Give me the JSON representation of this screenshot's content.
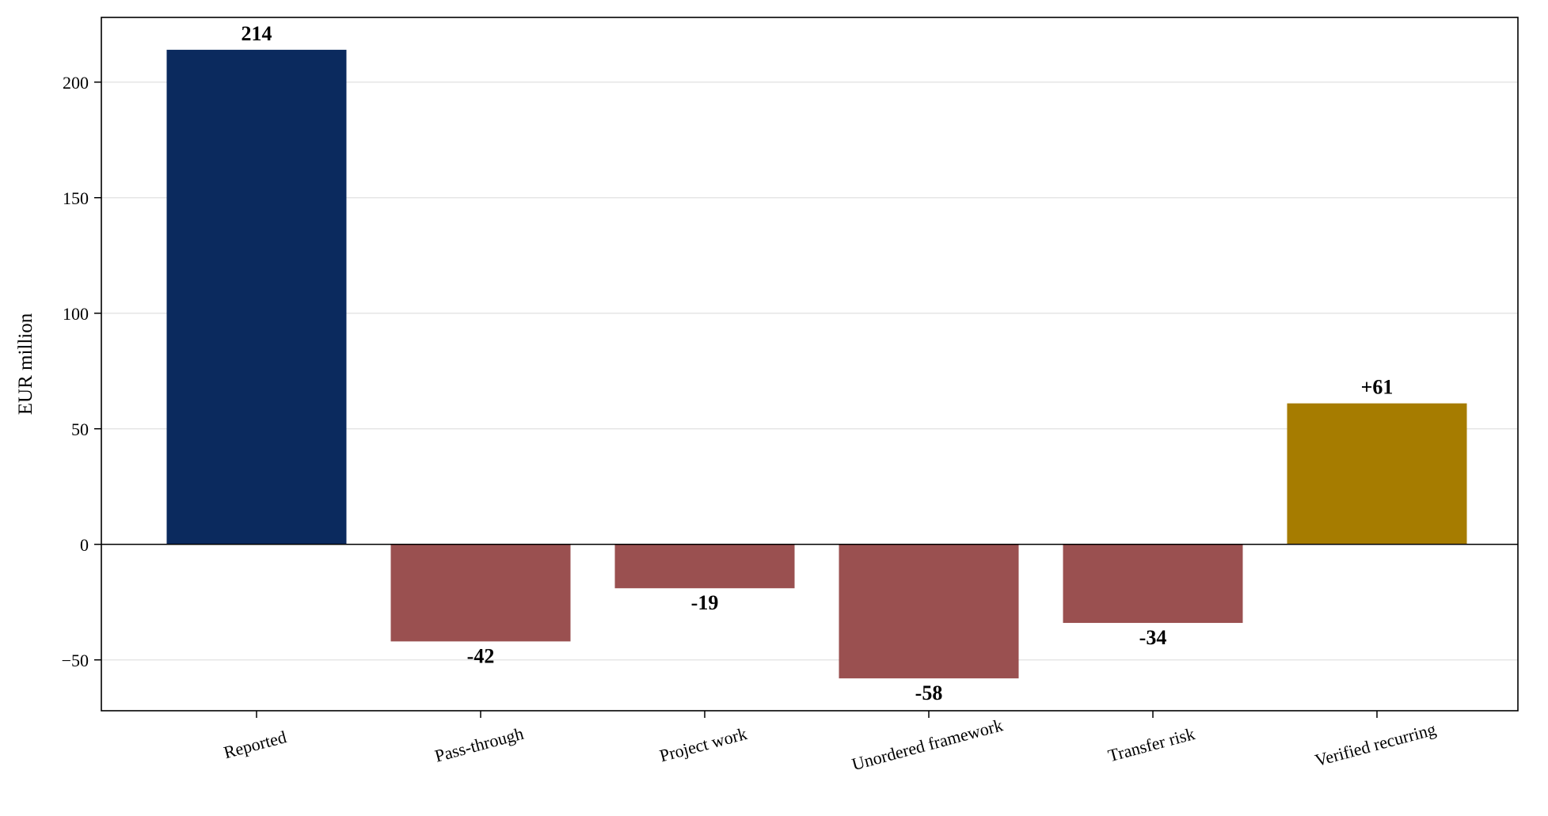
{
  "chart_data": {
    "type": "bar",
    "title": "",
    "xlabel": "",
    "ylabel": "EUR million",
    "categories": [
      "Reported",
      "Pass-through",
      "Project work",
      "Unordered framework",
      "Transfer risk",
      "Verified recurring"
    ],
    "values": [
      214,
      -42,
      -19,
      -58,
      -34,
      61
    ],
    "data_labels": [
      "214",
      "-42",
      "-19",
      "-58",
      "-34",
      "+61"
    ],
    "bar_colors": [
      "#0b2a5e",
      "#9a5050",
      "#9a5050",
      "#9a5050",
      "#9a5050",
      "#a67c00"
    ],
    "ylim": [
      -72,
      228
    ],
    "yticks": [
      -50,
      0,
      50,
      100,
      150,
      200
    ],
    "ytick_labels": [
      "−50",
      "0",
      "50",
      "100",
      "150",
      "200"
    ],
    "grid": "horizontal",
    "zero_line": true,
    "legend": "none"
  }
}
